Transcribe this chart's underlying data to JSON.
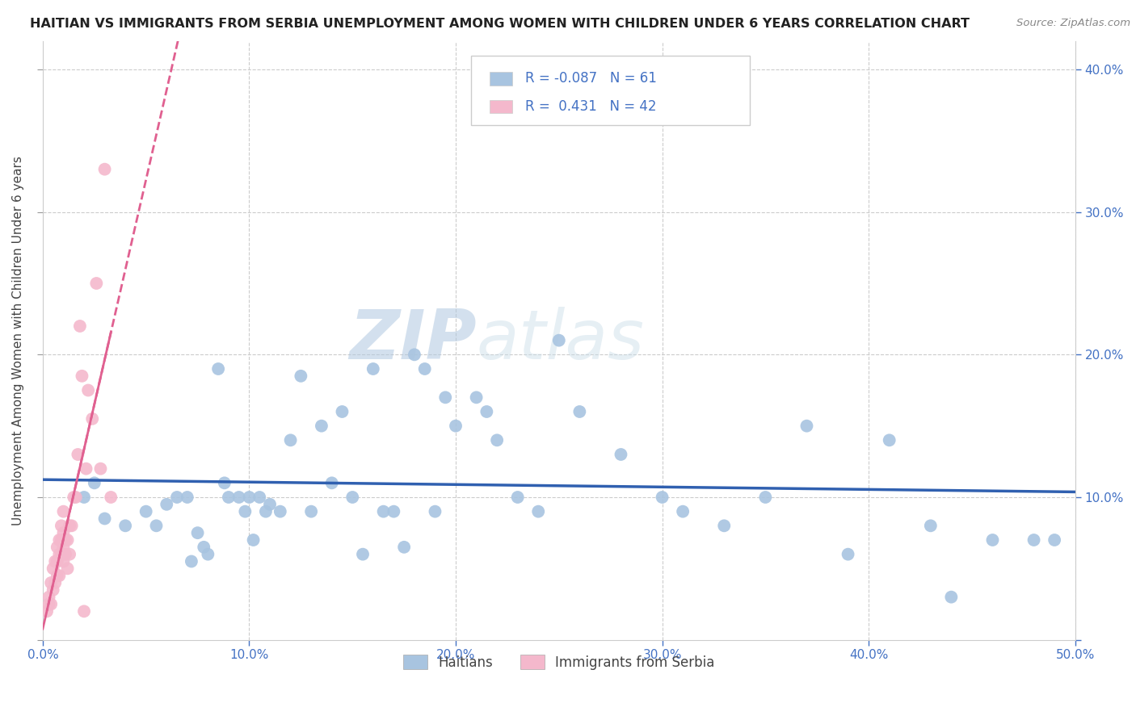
{
  "title": "HAITIAN VS IMMIGRANTS FROM SERBIA UNEMPLOYMENT AMONG WOMEN WITH CHILDREN UNDER 6 YEARS CORRELATION CHART",
  "source": "Source: ZipAtlas.com",
  "ylabel": "Unemployment Among Women with Children Under 6 years",
  "xlim": [
    0.0,
    0.5
  ],
  "ylim": [
    0.0,
    0.42
  ],
  "xtick_positions": [
    0.0,
    0.1,
    0.2,
    0.3,
    0.4,
    0.5
  ],
  "xtick_labels": [
    "0.0%",
    "10.0%",
    "20.0%",
    "30.0%",
    "40.0%",
    "50.0%"
  ],
  "ytick_positions": [
    0.0,
    0.1,
    0.2,
    0.3,
    0.4
  ],
  "ytick_labels_right": [
    "",
    "10.0%",
    "20.0%",
    "30.0%",
    "40.0%"
  ],
  "haitian_R": -0.087,
  "haitian_N": 61,
  "serbia_R": 0.431,
  "serbia_N": 42,
  "haitian_color": "#a8c4e0",
  "serbia_color": "#f4b8cc",
  "haitian_line_color": "#3060b0",
  "serbia_line_color": "#e06090",
  "watermark_zip": "ZIP",
  "watermark_atlas": "atlas",
  "haitian_x": [
    0.02,
    0.025,
    0.03,
    0.04,
    0.05,
    0.055,
    0.06,
    0.065,
    0.07,
    0.072,
    0.075,
    0.078,
    0.08,
    0.085,
    0.088,
    0.09,
    0.095,
    0.098,
    0.1,
    0.102,
    0.105,
    0.108,
    0.11,
    0.115,
    0.12,
    0.125,
    0.13,
    0.135,
    0.14,
    0.145,
    0.15,
    0.155,
    0.16,
    0.165,
    0.17,
    0.175,
    0.18,
    0.185,
    0.19,
    0.195,
    0.2,
    0.21,
    0.215,
    0.22,
    0.23,
    0.24,
    0.25,
    0.26,
    0.28,
    0.3,
    0.31,
    0.33,
    0.35,
    0.37,
    0.39,
    0.41,
    0.43,
    0.44,
    0.46,
    0.48,
    0.49
  ],
  "haitian_y": [
    0.1,
    0.11,
    0.085,
    0.08,
    0.09,
    0.08,
    0.095,
    0.1,
    0.1,
    0.055,
    0.075,
    0.065,
    0.06,
    0.19,
    0.11,
    0.1,
    0.1,
    0.09,
    0.1,
    0.07,
    0.1,
    0.09,
    0.095,
    0.09,
    0.14,
    0.185,
    0.09,
    0.15,
    0.11,
    0.16,
    0.1,
    0.06,
    0.19,
    0.09,
    0.09,
    0.065,
    0.2,
    0.19,
    0.09,
    0.17,
    0.15,
    0.17,
    0.16,
    0.14,
    0.1,
    0.09,
    0.21,
    0.16,
    0.13,
    0.1,
    0.09,
    0.08,
    0.1,
    0.15,
    0.06,
    0.14,
    0.08,
    0.03,
    0.07,
    0.07,
    0.07
  ],
  "serbia_x": [
    0.002,
    0.003,
    0.003,
    0.004,
    0.004,
    0.005,
    0.005,
    0.006,
    0.006,
    0.007,
    0.007,
    0.007,
    0.008,
    0.008,
    0.008,
    0.009,
    0.009,
    0.009,
    0.01,
    0.01,
    0.01,
    0.01,
    0.011,
    0.011,
    0.012,
    0.012,
    0.013,
    0.013,
    0.014,
    0.015,
    0.016,
    0.017,
    0.018,
    0.019,
    0.02,
    0.021,
    0.022,
    0.024,
    0.026,
    0.028,
    0.03,
    0.033
  ],
  "serbia_y": [
    0.02,
    0.025,
    0.03,
    0.04,
    0.025,
    0.035,
    0.05,
    0.04,
    0.055,
    0.045,
    0.055,
    0.065,
    0.045,
    0.06,
    0.07,
    0.06,
    0.07,
    0.08,
    0.055,
    0.065,
    0.075,
    0.09,
    0.06,
    0.07,
    0.05,
    0.07,
    0.06,
    0.08,
    0.08,
    0.1,
    0.1,
    0.13,
    0.22,
    0.185,
    0.02,
    0.12,
    0.175,
    0.155,
    0.25,
    0.12,
    0.33,
    0.1
  ]
}
